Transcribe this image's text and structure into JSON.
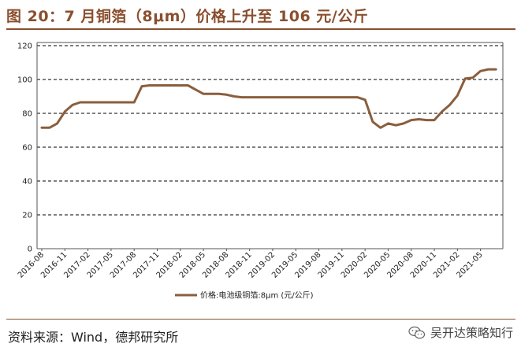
{
  "header": {
    "title": "图 20：7 月铜箔（8μm）价格上升至 106 元/公斤"
  },
  "footer": {
    "source": "资料来源：Wind，德邦研究所",
    "watermark": "吴开达策略知行",
    "watermark_icon": "wechat-icon"
  },
  "colors": {
    "accent": "#8a4f2e",
    "line": "#8b5e3c"
  },
  "chart_data": {
    "type": "line",
    "title": "",
    "xlabel": "",
    "ylabel": "",
    "ylim": [
      0,
      120
    ],
    "yticks": [
      0,
      20,
      40,
      60,
      80,
      100,
      120
    ],
    "grid": "horizontal-dashed",
    "legend_placement": "bottom-center",
    "x_tick_labels": [
      "2016-08",
      "2016-11",
      "2017-02",
      "2017-05",
      "2017-08",
      "2017-11",
      "2018-02",
      "2018-05",
      "2018-08",
      "2018-11",
      "2019-02",
      "2019-05",
      "2019-08",
      "2019-11",
      "2020-02",
      "2020-05",
      "2020-08",
      "2020-11",
      "2021-02",
      "2021-05"
    ],
    "series": [
      {
        "name": "价格:电池级铜箔:8μm (元/公斤)",
        "x": [
          "2016-08",
          "2016-09",
          "2016-10",
          "2016-11",
          "2016-12",
          "2017-01",
          "2017-02",
          "2017-03",
          "2017-04",
          "2017-05",
          "2017-06",
          "2017-07",
          "2017-08",
          "2017-09",
          "2017-10",
          "2017-11",
          "2017-12",
          "2018-01",
          "2018-02",
          "2018-03",
          "2018-04",
          "2018-05",
          "2018-06",
          "2018-07",
          "2018-08",
          "2018-09",
          "2018-10",
          "2018-11",
          "2018-12",
          "2019-01",
          "2019-02",
          "2019-03",
          "2019-04",
          "2019-05",
          "2019-06",
          "2019-07",
          "2019-08",
          "2019-09",
          "2019-10",
          "2019-11",
          "2019-12",
          "2020-01",
          "2020-02",
          "2020-03",
          "2020-04",
          "2020-05",
          "2020-06",
          "2020-07",
          "2020-08",
          "2020-09",
          "2020-10",
          "2020-11",
          "2020-12",
          "2021-01",
          "2021-02",
          "2021-03",
          "2021-04",
          "2021-05",
          "2021-06",
          "2021-07"
        ],
        "values": [
          71.5,
          71.5,
          74,
          81,
          85,
          86.5,
          86.5,
          86.5,
          86.5,
          86.5,
          86.5,
          86.5,
          86.5,
          96,
          96.5,
          96.5,
          96.5,
          96.5,
          96.5,
          96.5,
          94,
          91.5,
          91.5,
          91.5,
          91,
          90,
          89.5,
          89.5,
          89.5,
          89.5,
          89.5,
          89.5,
          89.5,
          89.5,
          89.5,
          89.5,
          89.5,
          89.5,
          89.5,
          89.5,
          89.5,
          89.5,
          88,
          75,
          71.5,
          74,
          73,
          74,
          76,
          76.5,
          76,
          76,
          81,
          85,
          90.5,
          100.5,
          101,
          105,
          106,
          106
        ]
      }
    ]
  }
}
